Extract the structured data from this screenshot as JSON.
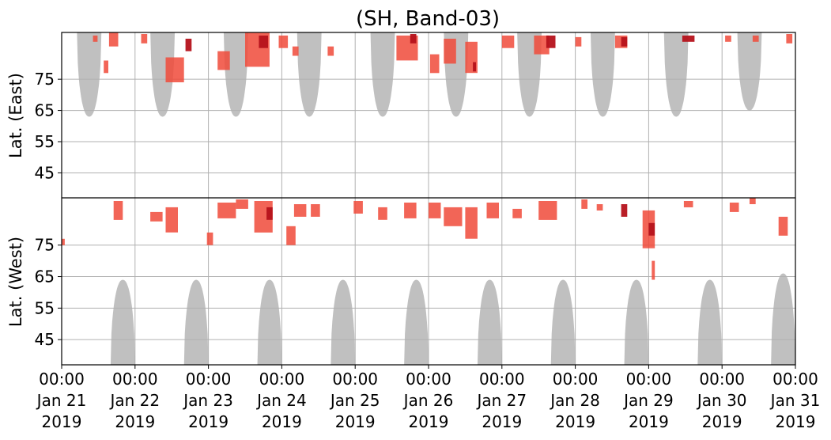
{
  "chart_data": {
    "type": "heatmap",
    "title": "(SH, Band-03)",
    "ylabel_top": "Lat. (East)",
    "ylabel_bottom": "Lat. (West)",
    "xlabel": "",
    "x_ticks": [
      {
        "time": "00:00",
        "date": "Jan 21",
        "year": "2019"
      },
      {
        "time": "00:00",
        "date": "Jan 22",
        "year": "2019"
      },
      {
        "time": "00:00",
        "date": "Jan 23",
        "year": "2019"
      },
      {
        "time": "00:00",
        "date": "Jan 24",
        "year": "2019"
      },
      {
        "time": "00:00",
        "date": "Jan 25",
        "year": "2019"
      },
      {
        "time": "00:00",
        "date": "Jan 26",
        "year": "2019"
      },
      {
        "time": "00:00",
        "date": "Jan 27",
        "year": "2019"
      },
      {
        "time": "00:00",
        "date": "Jan 28",
        "year": "2019"
      },
      {
        "time": "00:00",
        "date": "Jan 29",
        "year": "2019"
      },
      {
        "time": "00:00",
        "date": "Jan 30",
        "year": "2019"
      },
      {
        "time": "00:00",
        "date": "Jan 31",
        "year": "2019"
      }
    ],
    "xlim": [
      "2019-01-21 00:00",
      "2019-01-31 00:00"
    ],
    "east_yticks": [
      "45",
      "55",
      "65",
      "75"
    ],
    "west_yticks": [
      "75",
      "65",
      "55",
      "45"
    ],
    "east_ylim": [
      37,
      90
    ],
    "west_ylim": [
      90,
      37
    ],
    "grid": true,
    "colors": {
      "coverage": "#bdbdbd",
      "echo_light": "#f04a3a",
      "echo_dark": "#b5121b",
      "grid": "#b0b0b0",
      "divider": "#000000"
    },
    "series": [
      {
        "kind": "coverage",
        "hemisphere": "east",
        "lobes": [
          {
            "center": "2019-01-21 09:00",
            "half_width_hours": 4.0,
            "edge_lat": 63
          },
          {
            "center": "2019-01-22 09:00",
            "half_width_hours": 4.0,
            "edge_lat": 63
          },
          {
            "center": "2019-01-23 09:00",
            "half_width_hours": 4.0,
            "edge_lat": 63
          },
          {
            "center": "2019-01-24 09:00",
            "half_width_hours": 4.0,
            "edge_lat": 63
          },
          {
            "center": "2019-01-25 09:00",
            "half_width_hours": 4.0,
            "edge_lat": 63
          },
          {
            "center": "2019-01-26 09:00",
            "half_width_hours": 4.0,
            "edge_lat": 63
          },
          {
            "center": "2019-01-27 09:00",
            "half_width_hours": 4.0,
            "edge_lat": 63
          },
          {
            "center": "2019-01-28 09:00",
            "half_width_hours": 4.0,
            "edge_lat": 63
          },
          {
            "center": "2019-01-29 09:00",
            "half_width_hours": 4.0,
            "edge_lat": 63
          },
          {
            "center": "2019-01-30 09:00",
            "half_width_hours": 4.0,
            "edge_lat": 65
          }
        ]
      },
      {
        "kind": "coverage",
        "hemisphere": "west",
        "lobes": [
          {
            "center": "2019-01-21 20:00",
            "half_width_hours": 4.0,
            "edge_lat": 64
          },
          {
            "center": "2019-01-22 20:00",
            "half_width_hours": 4.0,
            "edge_lat": 64
          },
          {
            "center": "2019-01-23 20:00",
            "half_width_hours": 4.0,
            "edge_lat": 64
          },
          {
            "center": "2019-01-24 20:00",
            "half_width_hours": 4.0,
            "edge_lat": 64
          },
          {
            "center": "2019-01-25 20:00",
            "half_width_hours": 4.0,
            "edge_lat": 64
          },
          {
            "center": "2019-01-26 20:00",
            "half_width_hours": 4.0,
            "edge_lat": 64
          },
          {
            "center": "2019-01-27 20:00",
            "half_width_hours": 4.0,
            "edge_lat": 64
          },
          {
            "center": "2019-01-28 20:00",
            "half_width_hours": 4.0,
            "edge_lat": 64
          },
          {
            "center": "2019-01-29 20:00",
            "half_width_hours": 4.0,
            "edge_lat": 64
          },
          {
            "center": "2019-01-30 20:00",
            "half_width_hours": 4.0,
            "edge_lat": 66
          }
        ]
      },
      {
        "kind": "echoes",
        "clusters": [
          {
            "time": "2019-01-21 00:30",
            "hemisphere": "west",
            "lat": 76,
            "hours": 1.0,
            "lat_span": 2,
            "intensity": "light"
          },
          {
            "time": "2019-01-21 11:00",
            "hemisphere": "east",
            "lat": 88,
            "hours": 1.5,
            "lat_span": 2,
            "intensity": "light"
          },
          {
            "time": "2019-01-21 14:30",
            "hemisphere": "east",
            "lat": 79,
            "hours": 1.5,
            "lat_span": 4,
            "intensity": "light"
          },
          {
            "time": "2019-01-21 17:00",
            "hemisphere": "east",
            "lat": 88,
            "hours": 3.0,
            "lat_span": 5,
            "intensity": "light"
          },
          {
            "time": "2019-01-21 18:30",
            "hemisphere": "west",
            "lat": 86,
            "hours": 3.0,
            "lat_span": 6,
            "intensity": "light"
          },
          {
            "time": "2019-01-22 03:00",
            "hemisphere": "east",
            "lat": 88,
            "hours": 2.0,
            "lat_span": 3,
            "intensity": "light"
          },
          {
            "time": "2019-01-22 07:00",
            "hemisphere": "west",
            "lat": 84,
            "hours": 4.0,
            "lat_span": 3,
            "intensity": "light"
          },
          {
            "time": "2019-01-22 13:00",
            "hemisphere": "east",
            "lat": 78,
            "hours": 6.0,
            "lat_span": 8,
            "intensity": "light"
          },
          {
            "time": "2019-01-22 12:00",
            "hemisphere": "west",
            "lat": 83,
            "hours": 4.0,
            "lat_span": 8,
            "intensity": "light"
          },
          {
            "time": "2019-01-22 17:30",
            "hemisphere": "east",
            "lat": 86,
            "hours": 2.0,
            "lat_span": 4,
            "intensity": "dark"
          },
          {
            "time": "2019-01-23 00:30",
            "hemisphere": "west",
            "lat": 77,
            "hours": 2.0,
            "lat_span": 4,
            "intensity": "light"
          },
          {
            "time": "2019-01-23 05:00",
            "hemisphere": "east",
            "lat": 81,
            "hours": 4.0,
            "lat_span": 6,
            "intensity": "light"
          },
          {
            "time": "2019-01-23 06:00",
            "hemisphere": "west",
            "lat": 86,
            "hours": 6.0,
            "lat_span": 5,
            "intensity": "light"
          },
          {
            "time": "2019-01-23 11:00",
            "hemisphere": "west",
            "lat": 88,
            "hours": 4.0,
            "lat_span": 3,
            "intensity": "light"
          },
          {
            "time": "2019-01-23 16:00",
            "hemisphere": "east",
            "lat": 85,
            "hours": 8.0,
            "lat_span": 12,
            "intensity": "light"
          },
          {
            "time": "2019-01-23 18:00",
            "hemisphere": "east",
            "lat": 87,
            "hours": 3.0,
            "lat_span": 4,
            "intensity": "dark"
          },
          {
            "time": "2019-01-23 18:00",
            "hemisphere": "west",
            "lat": 84,
            "hours": 6.0,
            "lat_span": 10,
            "intensity": "light"
          },
          {
            "time": "2019-01-23 20:00",
            "hemisphere": "west",
            "lat": 85,
            "hours": 2.0,
            "lat_span": 4,
            "intensity": "dark"
          },
          {
            "time": "2019-01-24 00:30",
            "hemisphere": "east",
            "lat": 87,
            "hours": 3.0,
            "lat_span": 4,
            "intensity": "light"
          },
          {
            "time": "2019-01-24 03:00",
            "hemisphere": "west",
            "lat": 78,
            "hours": 3.0,
            "lat_span": 6,
            "intensity": "light"
          },
          {
            "time": "2019-01-24 04:30",
            "hemisphere": "east",
            "lat": 84,
            "hours": 2.0,
            "lat_span": 3,
            "intensity": "light"
          },
          {
            "time": "2019-01-24 06:00",
            "hemisphere": "west",
            "lat": 86,
            "hours": 4.0,
            "lat_span": 4,
            "intensity": "light"
          },
          {
            "time": "2019-01-24 11:00",
            "hemisphere": "west",
            "lat": 86,
            "hours": 3.0,
            "lat_span": 4,
            "intensity": "light"
          },
          {
            "time": "2019-01-24 16:00",
            "hemisphere": "east",
            "lat": 84,
            "hours": 2.0,
            "lat_span": 3,
            "intensity": "light"
          },
          {
            "time": "2019-01-25 01:00",
            "hemisphere": "west",
            "lat": 87,
            "hours": 3.0,
            "lat_span": 4,
            "intensity": "light"
          },
          {
            "time": "2019-01-25 09:00",
            "hemisphere": "west",
            "lat": 85,
            "hours": 3.0,
            "lat_span": 4,
            "intensity": "light"
          },
          {
            "time": "2019-01-25 17:00",
            "hemisphere": "east",
            "lat": 85,
            "hours": 7.0,
            "lat_span": 8,
            "intensity": "light"
          },
          {
            "time": "2019-01-25 18:00",
            "hemisphere": "west",
            "lat": 86,
            "hours": 4.0,
            "lat_span": 5,
            "intensity": "light"
          },
          {
            "time": "2019-01-25 19:00",
            "hemisphere": "east",
            "lat": 88,
            "hours": 2.0,
            "lat_span": 3,
            "intensity": "dark"
          },
          {
            "time": "2019-01-26 02:00",
            "hemisphere": "east",
            "lat": 80,
            "hours": 3.0,
            "lat_span": 6,
            "intensity": "light"
          },
          {
            "time": "2019-01-26 02:00",
            "hemisphere": "west",
            "lat": 86,
            "hours": 4.0,
            "lat_span": 5,
            "intensity": "light"
          },
          {
            "time": "2019-01-26 07:00",
            "hemisphere": "east",
            "lat": 84,
            "hours": 4.0,
            "lat_span": 8,
            "intensity": "light"
          },
          {
            "time": "2019-01-26 08:00",
            "hemisphere": "west",
            "lat": 84,
            "hours": 6.0,
            "lat_span": 6,
            "intensity": "light"
          },
          {
            "time": "2019-01-26 14:00",
            "hemisphere": "east",
            "lat": 82,
            "hours": 4.0,
            "lat_span": 10,
            "intensity": "light"
          },
          {
            "time": "2019-01-26 14:00",
            "hemisphere": "west",
            "lat": 82,
            "hours": 4.0,
            "lat_span": 10,
            "intensity": "light"
          },
          {
            "time": "2019-01-26 15:00",
            "hemisphere": "east",
            "lat": 79,
            "hours": 1.0,
            "lat_span": 3,
            "intensity": "dark"
          },
          {
            "time": "2019-01-26 21:00",
            "hemisphere": "west",
            "lat": 86,
            "hours": 4.0,
            "lat_span": 5,
            "intensity": "light"
          },
          {
            "time": "2019-01-27 02:00",
            "hemisphere": "east",
            "lat": 87,
            "hours": 4.0,
            "lat_span": 4,
            "intensity": "light"
          },
          {
            "time": "2019-01-27 05:00",
            "hemisphere": "west",
            "lat": 85,
            "hours": 3.0,
            "lat_span": 3,
            "intensity": "light"
          },
          {
            "time": "2019-01-27 13:00",
            "hemisphere": "east",
            "lat": 86,
            "hours": 5.0,
            "lat_span": 6,
            "intensity": "light"
          },
          {
            "time": "2019-01-27 15:00",
            "hemisphere": "west",
            "lat": 86,
            "hours": 6.0,
            "lat_span": 6,
            "intensity": "light"
          },
          {
            "time": "2019-01-27 16:00",
            "hemisphere": "east",
            "lat": 87,
            "hours": 3.0,
            "lat_span": 4,
            "intensity": "dark"
          },
          {
            "time": "2019-01-28 01:00",
            "hemisphere": "east",
            "lat": 87,
            "hours": 2.0,
            "lat_span": 3,
            "intensity": "light"
          },
          {
            "time": "2019-01-28 03:00",
            "hemisphere": "west",
            "lat": 88,
            "hours": 2.0,
            "lat_span": 3,
            "intensity": "light"
          },
          {
            "time": "2019-01-28 08:00",
            "hemisphere": "west",
            "lat": 87,
            "hours": 2.0,
            "lat_span": 2,
            "intensity": "light"
          },
          {
            "time": "2019-01-28 15:00",
            "hemisphere": "east",
            "lat": 87,
            "hours": 4.0,
            "lat_span": 4,
            "intensity": "light"
          },
          {
            "time": "2019-01-28 16:00",
            "hemisphere": "east",
            "lat": 87,
            "hours": 2.0,
            "lat_span": 3,
            "intensity": "dark"
          },
          {
            "time": "2019-01-28 16:00",
            "hemisphere": "west",
            "lat": 86,
            "hours": 2.0,
            "lat_span": 4,
            "intensity": "dark"
          },
          {
            "time": "2019-01-29 00:00",
            "hemisphere": "west",
            "lat": 80,
            "hours": 4.0,
            "lat_span": 12,
            "intensity": "light"
          },
          {
            "time": "2019-01-29 01:00",
            "hemisphere": "west",
            "lat": 80,
            "hours": 2.0,
            "lat_span": 4,
            "intensity": "dark"
          },
          {
            "time": "2019-01-29 01:30",
            "hemisphere": "west",
            "lat": 67,
            "hours": 1.0,
            "lat_span": 6,
            "intensity": "light"
          },
          {
            "time": "2019-01-29 13:00",
            "hemisphere": "east",
            "lat": 88,
            "hours": 4.0,
            "lat_span": 2,
            "intensity": "dark"
          },
          {
            "time": "2019-01-29 13:00",
            "hemisphere": "west",
            "lat": 88,
            "hours": 3.0,
            "lat_span": 2,
            "intensity": "light"
          },
          {
            "time": "2019-01-30 02:00",
            "hemisphere": "east",
            "lat": 88,
            "hours": 2.0,
            "lat_span": 2,
            "intensity": "light"
          },
          {
            "time": "2019-01-30 04:00",
            "hemisphere": "west",
            "lat": 87,
            "hours": 3.0,
            "lat_span": 3,
            "intensity": "light"
          },
          {
            "time": "2019-01-30 10:00",
            "hemisphere": "west",
            "lat": 89,
            "hours": 2.0,
            "lat_span": 2,
            "intensity": "light"
          },
          {
            "time": "2019-01-30 11:00",
            "hemisphere": "east",
            "lat": 88,
            "hours": 2.0,
            "lat_span": 2,
            "intensity": "light"
          },
          {
            "time": "2019-01-30 20:00",
            "hemisphere": "west",
            "lat": 81,
            "hours": 3.0,
            "lat_span": 6,
            "intensity": "light"
          },
          {
            "time": "2019-01-30 22:00",
            "hemisphere": "east",
            "lat": 88,
            "hours": 2.0,
            "lat_span": 3,
            "intensity": "light"
          }
        ]
      }
    ]
  }
}
